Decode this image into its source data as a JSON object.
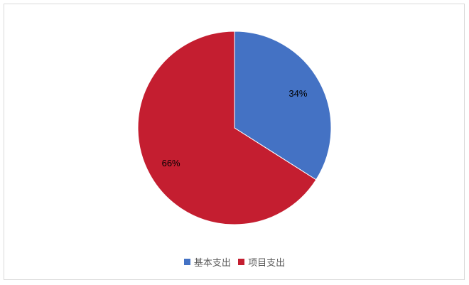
{
  "chart_data": {
    "type": "pie",
    "categories": [
      "基本支出",
      "项目支出"
    ],
    "values": [
      34,
      66
    ],
    "data_labels": [
      "34%",
      "66%"
    ],
    "colors": [
      "#4472C4",
      "#C41E30"
    ],
    "legend_position": "bottom",
    "start_angle": "top, clockwise"
  }
}
